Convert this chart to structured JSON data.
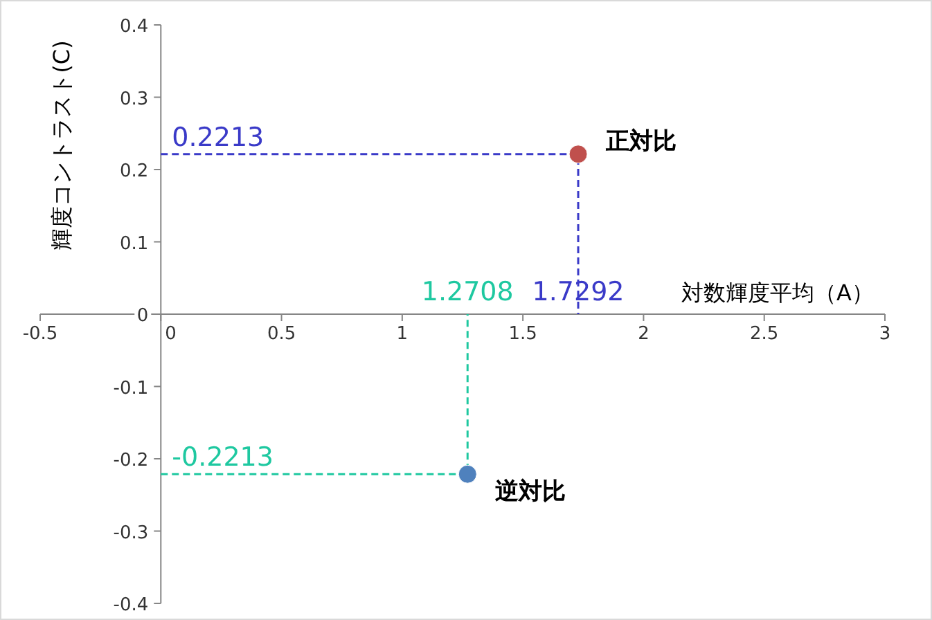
{
  "chart_data": {
    "type": "scatter",
    "xlabel": "対数輝度平均（A）",
    "ylabel": "輝度コントラスト(C)",
    "xlim": [
      -0.5,
      3
    ],
    "xticks": [
      -0.5,
      0,
      0.5,
      1,
      1.5,
      2,
      2.5,
      3
    ],
    "ylim": [
      -0.4,
      0.4
    ],
    "yticks": [
      -0.4,
      -0.3,
      -0.2,
      -0.1,
      0,
      0.1,
      0.2,
      0.3,
      0.4
    ],
    "grid": false,
    "legend": false,
    "marker": "circle",
    "series": [
      {
        "type": "line",
        "line_style": "dashed",
        "marker": "none",
        "color": "#3a3ac8",
        "x": [
          0,
          1.7292,
          1.7292
        ],
        "values": [
          0.2213,
          0.2213,
          0
        ]
      },
      {
        "type": "line",
        "line_style": "dashed",
        "marker": "none",
        "color": "#1ec8a0",
        "x": [
          0,
          1.2708,
          1.2708
        ],
        "values": [
          -0.2213,
          -0.2213,
          0
        ]
      },
      {
        "name": "正対比",
        "color": "#c0504d",
        "x": [
          1.7292
        ],
        "values": [
          0.2213
        ]
      },
      {
        "name": "逆対比",
        "color": "#4f81bd",
        "x": [
          1.2708
        ],
        "values": [
          -0.2213
        ]
      }
    ],
    "annotations": [
      {
        "text": "0.2213",
        "x": 0,
        "y": 0.2213
      },
      {
        "text": "1.7292",
        "x": 1.7292,
        "y": 0
      },
      {
        "text": "1.2708",
        "x": 1.2708,
        "y": 0
      },
      {
        "text": "-0.2213",
        "x": 0,
        "y": -0.2213
      }
    ]
  }
}
